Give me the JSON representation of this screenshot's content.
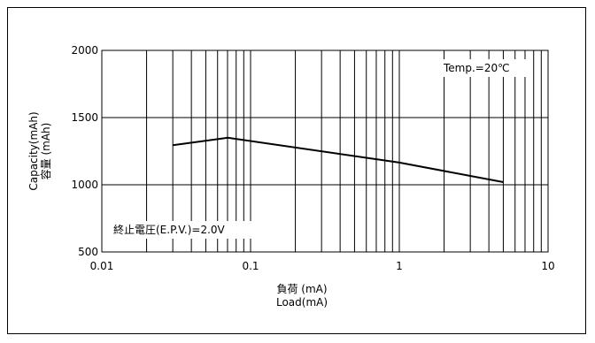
{
  "chart_data": {
    "type": "line",
    "xscale": "log",
    "xlim": [
      0.01,
      10
    ],
    "ylim": [
      500,
      2000
    ],
    "xticks": [
      0.01,
      0.1,
      1,
      10
    ],
    "xtick_labels": [
      "0.01",
      "0.1",
      "1",
      "10"
    ],
    "yticks": [
      500,
      1000,
      1500,
      2000
    ],
    "ytick_labels": [
      "500",
      "1000",
      "1500",
      "2000"
    ],
    "xlabel_jp": "負荷 (mA)",
    "xlabel_en": "Load(mA)",
    "ylabel_en": "Capacity(mAh)",
    "ylabel_jp": "容量 (mAh)",
    "grid": true,
    "annotations": {
      "temp": "Temp.=20℃",
      "epv": "終止電圧(E.P.V.)=2.0V"
    },
    "series": [
      {
        "x": [
          0.03,
          0.07,
          1,
          5
        ],
        "y": [
          1295,
          1350,
          1165,
          1020
        ]
      }
    ]
  }
}
